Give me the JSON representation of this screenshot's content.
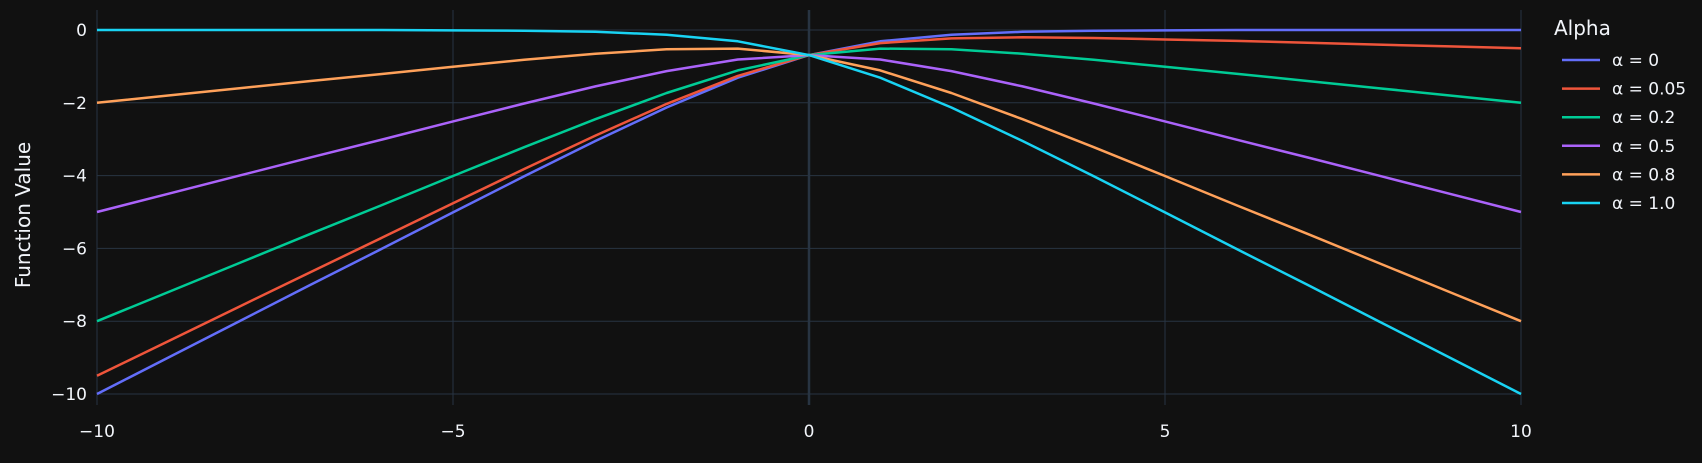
{
  "chart_data": {
    "type": "line",
    "title": "",
    "xlabel": "",
    "ylabel": "Function Value",
    "xlim": [
      -10,
      10
    ],
    "ylim": [
      -10.3,
      0.55
    ],
    "x_ticks": [
      -10,
      -5,
      0,
      5,
      10
    ],
    "x_tick_labels": [
      "−10",
      "−5",
      "0",
      "5",
      "10"
    ],
    "y_ticks": [
      0,
      -2,
      -4,
      -6,
      -8,
      -10
    ],
    "y_tick_labels": [
      "0",
      "−2",
      "−4",
      "−6",
      "−8",
      "−10"
    ],
    "grid": true,
    "legend_title": "Alpha",
    "legend_position": "right",
    "x": [
      -10,
      -9,
      -8,
      -7,
      -6,
      -5,
      -4,
      -3,
      -2,
      -1,
      0,
      1,
      2,
      3,
      4,
      5,
      6,
      7,
      8,
      9,
      10
    ],
    "series": [
      {
        "name": "α = 0",
        "color": "#636efa",
        "values": [
          -10.0,
          -9.0,
          -8.0,
          -7.0,
          -6.01,
          -5.01,
          -4.02,
          -3.05,
          -2.13,
          -1.31,
          -0.69,
          -0.31,
          -0.13,
          -0.05,
          -0.02,
          -0.01,
          0.0,
          0.0,
          0.0,
          0.0,
          0.0
        ]
      },
      {
        "name": "α = 0.05",
        "color": "#ef553b",
        "values": [
          -9.5,
          -8.55,
          -7.6,
          -6.65,
          -5.71,
          -4.76,
          -3.82,
          -2.9,
          -2.03,
          -1.26,
          -0.69,
          -0.36,
          -0.23,
          -0.2,
          -0.22,
          -0.26,
          -0.3,
          -0.35,
          -0.4,
          -0.45,
          -0.5
        ]
      },
      {
        "name": "α = 0.2",
        "color": "#00cc96",
        "values": [
          -8.0,
          -7.2,
          -6.4,
          -5.6,
          -4.81,
          -4.01,
          -3.22,
          -2.45,
          -1.73,
          -1.11,
          -0.69,
          -0.51,
          -0.53,
          -0.65,
          -0.82,
          -1.01,
          -1.2,
          -1.4,
          -1.6,
          -1.8,
          -2.0
        ]
      },
      {
        "name": "α = 0.5",
        "color": "#ab63fa",
        "values": [
          -5.0,
          -4.5,
          -4.0,
          -3.5,
          -3.01,
          -2.51,
          -2.02,
          -1.55,
          -1.13,
          -0.81,
          -0.69,
          -0.81,
          -1.13,
          -1.55,
          -2.02,
          -2.51,
          -3.01,
          -3.5,
          -4.0,
          -4.5,
          -5.0
        ]
      },
      {
        "name": "α = 0.8",
        "color": "#ffa15a",
        "values": [
          -2.0,
          -1.8,
          -1.6,
          -1.4,
          -1.21,
          -1.01,
          -0.82,
          -0.65,
          -0.53,
          -0.51,
          -0.69,
          -1.11,
          -1.73,
          -2.45,
          -3.22,
          -4.01,
          -4.81,
          -5.6,
          -6.4,
          -7.2,
          -8.0
        ]
      },
      {
        "name": "α = 1.0",
        "color": "#19d3f3",
        "values": [
          0.0,
          0.0,
          0.0,
          0.0,
          0.0,
          -0.01,
          -0.02,
          -0.05,
          -0.13,
          -0.31,
          -0.69,
          -1.31,
          -2.13,
          -3.05,
          -4.02,
          -5.01,
          -6.01,
          -7.0,
          -8.0,
          -9.0,
          -10.0
        ]
      }
    ]
  },
  "colors": {
    "background": "#111111",
    "grid": "#283442",
    "zero_line": "#283442",
    "text": "#f2f5fa"
  }
}
